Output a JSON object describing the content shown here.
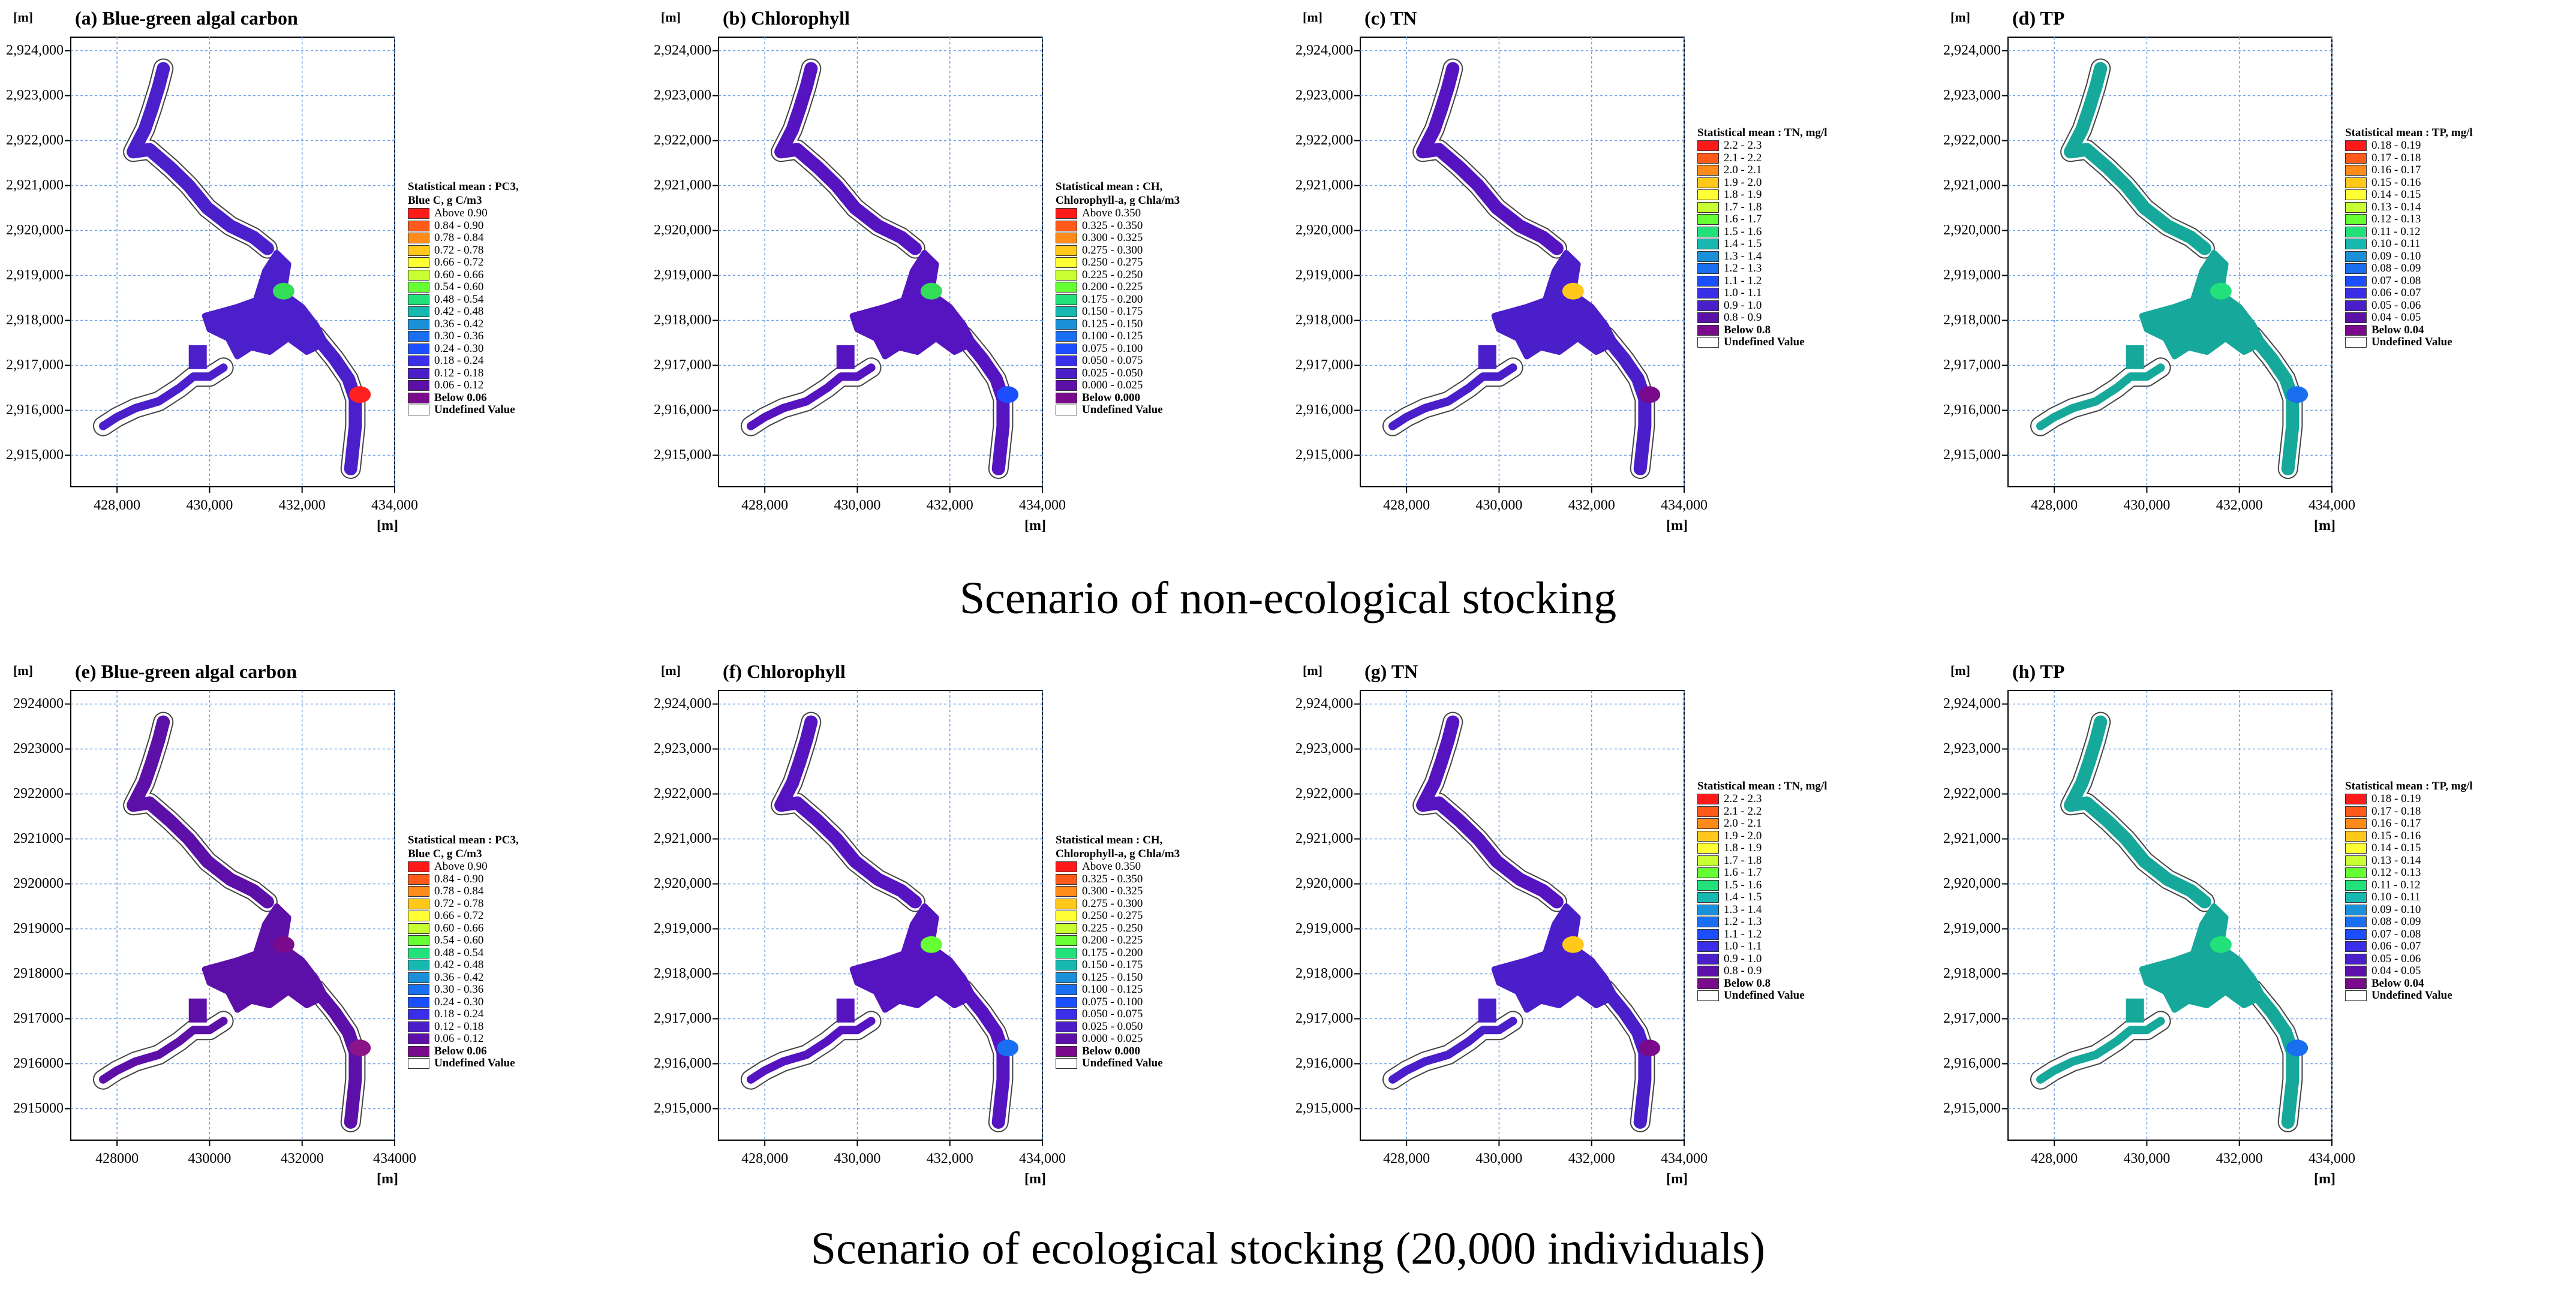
{
  "scenarios": [
    {
      "caption": "Scenario of non-ecological stocking",
      "panels": [
        {
          "title": "(a) Blue-green algal carbon",
          "unit_label": "[m]",
          "y_ticks": [
            "2,924,000",
            "2,923,000",
            "2,922,000",
            "2,921,000",
            "2,920,000",
            "2,919,000",
            "2,918,000",
            "2,917,000",
            "2,916,000",
            "2,915,000"
          ],
          "x_ticks": [
            "428,000",
            "430,000",
            "432,000",
            "434,000"
          ],
          "legend": {
            "title_lines": [
              "Statistical mean : PC3,",
              "Blue C, g C/m3"
            ],
            "entries": [
              "Above 0.90",
              "0.84 - 0.90",
              "0.78 - 0.84",
              "0.72 - 0.78",
              "0.66 - 0.72",
              "0.60 - 0.66",
              "0.54 - 0.60",
              "0.48 - 0.54",
              "0.42 - 0.48",
              "0.36 - 0.42",
              "0.30 - 0.36",
              "0.24 - 0.30",
              "0.18 - 0.24",
              "0.12 - 0.18",
              "0.06 - 0.12",
              "Below 0.06",
              "Undefined Value"
            ],
            "colors": [
              "#ff1a1a",
              "#ff5a1a",
              "#ff8c1a",
              "#ffc81a",
              "#ffff33",
              "#c8ff33",
              "#66ff33",
              "#22e07a",
              "#16b8b0",
              "#1a90d8",
              "#1a6ef0",
              "#1a4eff",
              "#3a2ee8",
              "#4a1ec8",
              "#5c10a8",
              "#7a0a8c",
              "#ffffff"
            ]
          },
          "fill": {
            "base": "#4b1fc9",
            "upper": "#4b1fc9",
            "spots": [
              {
                "label": "east bay",
                "color": "#33dd55"
              },
              {
                "label": "south-east tip",
                "color": "#ff2020"
              }
            ]
          }
        },
        {
          "title": "(b) Chlorophyll",
          "unit_label": "[m]",
          "y_ticks": [
            "2,924,000",
            "2,923,000",
            "2,922,000",
            "2,921,000",
            "2,920,000",
            "2,919,000",
            "2,918,000",
            "2,917,000",
            "2,916,000",
            "2,915,000"
          ],
          "x_ticks": [
            "428,000",
            "430,000",
            "432,000",
            "434,000"
          ],
          "legend": {
            "title_lines": [
              "Statistical mean : CH,",
              "Chlorophyll-a, g Chla/m3"
            ],
            "entries": [
              "Above 0.350",
              "0.325 - 0.350",
              "0.300 - 0.325",
              "0.275 - 0.300",
              "0.250 - 0.275",
              "0.225 - 0.250",
              "0.200 - 0.225",
              "0.175 - 0.200",
              "0.150 - 0.175",
              "0.125 - 0.150",
              "0.100 - 0.125",
              "0.075 - 0.100",
              "0.050 - 0.075",
              "0.025 - 0.050",
              "0.000 - 0.025",
              "Below 0.000",
              "Undefined Value"
            ],
            "colors": [
              "#ff1a1a",
              "#ff5a1a",
              "#ff8c1a",
              "#ffc81a",
              "#ffff33",
              "#c8ff33",
              "#66ff33",
              "#22e07a",
              "#16b8b0",
              "#1a90d8",
              "#1a6ef0",
              "#1a4eff",
              "#3a2ee8",
              "#4a1ec8",
              "#5c10a8",
              "#7a0a8c",
              "#ffffff"
            ]
          },
          "fill": {
            "base": "#5514c0",
            "upper": "#5514c0",
            "spots": [
              {
                "label": "east bay",
                "color": "#33dd55"
              },
              {
                "label": "south-east tip",
                "color": "#1a4eff"
              }
            ]
          }
        },
        {
          "title": "(c) TN",
          "unit_label": "[m]",
          "y_ticks": [
            "2,924,000",
            "2,923,000",
            "2,922,000",
            "2,921,000",
            "2,920,000",
            "2,919,000",
            "2,918,000",
            "2,917,000",
            "2,916,000",
            "2,915,000"
          ],
          "x_ticks": [
            "428,000",
            "430,000",
            "432,000",
            "434,000"
          ],
          "legend": {
            "title_lines": [
              "Statistical mean : TN, mg/l"
            ],
            "entries": [
              "2.2 - 2.3",
              "2.1 - 2.2",
              "2.0 - 2.1",
              "1.9 - 2.0",
              "1.8 - 1.9",
              "1.7 - 1.8",
              "1.6 - 1.7",
              "1.5 - 1.6",
              "1.4 - 1.5",
              "1.3 - 1.4",
              "1.2 - 1.3",
              "1.1 - 1.2",
              "1.0 - 1.1",
              "0.9 - 1.0",
              "0.8 - 0.9",
              "Below 0.8",
              "Undefined Value"
            ],
            "colors": [
              "#ff1a1a",
              "#ff5a1a",
              "#ff8c1a",
              "#ffc81a",
              "#ffff33",
              "#c8ff33",
              "#66ff33",
              "#22e07a",
              "#16b8b0",
              "#1a90d8",
              "#1a6ef0",
              "#1a4eff",
              "#3a2ee8",
              "#4a1ec8",
              "#5c10a8",
              "#7a0a8c",
              "#ffffff"
            ]
          },
          "fill": {
            "base": "#4a1ec8",
            "upper": "#5514c0",
            "spots": [
              {
                "label": "east bay",
                "color": "#ffc81a"
              },
              {
                "label": "south-east tip",
                "color": "#7a0a8c"
              }
            ]
          }
        },
        {
          "title": "(d) TP",
          "unit_label": "[m]",
          "y_ticks": [
            "2,924,000",
            "2,923,000",
            "2,922,000",
            "2,921,000",
            "2,920,000",
            "2,919,000",
            "2,918,000",
            "2,917,000",
            "2,916,000",
            "2,915,000"
          ],
          "x_ticks": [
            "428,000",
            "430,000",
            "432,000",
            "434,000"
          ],
          "legend": {
            "title_lines": [
              "Statistical mean : TP, mg/l"
            ],
            "entries": [
              "0.18 - 0.19",
              "0.17 - 0.18",
              "0.16 - 0.17",
              "0.15 - 0.16",
              "0.14 - 0.15",
              "0.13 - 0.14",
              "0.12 - 0.13",
              "0.11 - 0.12",
              "0.10 - 0.11",
              "0.09 - 0.10",
              "0.08 - 0.09",
              "0.07 - 0.08",
              "0.06 - 0.07",
              "0.05 - 0.06",
              "0.04 - 0.05",
              "Below 0.04",
              "Undefined Value"
            ],
            "colors": [
              "#ff1a1a",
              "#ff5a1a",
              "#ff8c1a",
              "#ffc81a",
              "#ffff33",
              "#c8ff33",
              "#66ff33",
              "#22e07a",
              "#16b8b0",
              "#1a90d8",
              "#1a6ef0",
              "#1a4eff",
              "#3a2ee8",
              "#4a1ec8",
              "#5c10a8",
              "#7a0a8c",
              "#ffffff"
            ]
          },
          "fill": {
            "base": "#16a89a",
            "upper": "#16a89a",
            "spots": [
              {
                "label": "east bay",
                "color": "#22e07a"
              },
              {
                "label": "south-east tip",
                "color": "#1a6ef0"
              }
            ]
          }
        }
      ]
    },
    {
      "caption": "Scenario of ecological stocking (20,000 individuals)",
      "panels": [
        {
          "title": "(e) Blue-green algal carbon",
          "unit_label": "[m]",
          "y_ticks": [
            "2924000",
            "2923000",
            "2922000",
            "2921000",
            "2920000",
            "2919000",
            "2918000",
            "2917000",
            "2916000",
            "2915000"
          ],
          "x_ticks": [
            "428000",
            "430000",
            "432000",
            "434000"
          ],
          "legend": {
            "title_lines": [
              "Statistical mean : PC3,",
              "Blue C, g C/m3"
            ],
            "entries": [
              "Above 0.90",
              "0.84 - 0.90",
              "0.78 - 0.84",
              "0.72 - 0.78",
              "0.66 - 0.72",
              "0.60 - 0.66",
              "0.54 - 0.60",
              "0.48 - 0.54",
              "0.42 - 0.48",
              "0.36 - 0.42",
              "0.30 - 0.36",
              "0.24 - 0.30",
              "0.18 - 0.24",
              "0.12 - 0.18",
              "0.06 - 0.12",
              "Below 0.06",
              "Undefined Value"
            ],
            "colors": [
              "#ff1a1a",
              "#ff5a1a",
              "#ff8c1a",
              "#ffc81a",
              "#ffff33",
              "#c8ff33",
              "#66ff33",
              "#22e07a",
              "#16b8b0",
              "#1a90d8",
              "#1a6ef0",
              "#1a4eff",
              "#3a2ee8",
              "#4a1ec8",
              "#5c10a8",
              "#7a0a8c",
              "#ffffff"
            ]
          },
          "fill": {
            "base": "#5c10a8",
            "upper": "#5c10a8",
            "spots": [
              {
                "label": "east bay",
                "color": "#7a0a8c"
              },
              {
                "label": "south-east tip",
                "color": "#8a1488"
              }
            ]
          }
        },
        {
          "title": "(f) Chlorophyll",
          "unit_label": "[m]",
          "y_ticks": [
            "2,924,000",
            "2,923,000",
            "2,922,000",
            "2,921,000",
            "2,920,000",
            "2,919,000",
            "2,918,000",
            "2,917,000",
            "2,916,000",
            "2,915,000"
          ],
          "x_ticks": [
            "428,000",
            "430,000",
            "432,000",
            "434,000"
          ],
          "legend": {
            "title_lines": [
              "Statistical mean : CH,",
              "Chlorophyll-a, g Chla/m3"
            ],
            "entries": [
              "Above 0.350",
              "0.325 - 0.350",
              "0.300 - 0.325",
              "0.275 - 0.300",
              "0.250 - 0.275",
              "0.225 - 0.250",
              "0.200 - 0.225",
              "0.175 - 0.200",
              "0.150 - 0.175",
              "0.125 - 0.150",
              "0.100 - 0.125",
              "0.075 - 0.100",
              "0.050 - 0.075",
              "0.025 - 0.050",
              "0.000 - 0.025",
              "Below 0.000",
              "Undefined Value"
            ],
            "colors": [
              "#ff1a1a",
              "#ff5a1a",
              "#ff8c1a",
              "#ffc81a",
              "#ffff33",
              "#c8ff33",
              "#66ff33",
              "#22e07a",
              "#16b8b0",
              "#1a90d8",
              "#1a6ef0",
              "#1a4eff",
              "#3a2ee8",
              "#4a1ec8",
              "#5c10a8",
              "#7a0a8c",
              "#ffffff"
            ]
          },
          "fill": {
            "base": "#5514c0",
            "upper": "#5514c0",
            "spots": [
              {
                "label": "east bay",
                "color": "#66ff33"
              },
              {
                "label": "south-east tip",
                "color": "#1a6ef0"
              }
            ]
          }
        },
        {
          "title": "(g) TN",
          "unit_label": "[m]",
          "y_ticks": [
            "2,924,000",
            "2,923,000",
            "2,922,000",
            "2,921,000",
            "2,920,000",
            "2,919,000",
            "2,918,000",
            "2,917,000",
            "2,916,000",
            "2,915,000"
          ],
          "x_ticks": [
            "428,000",
            "430,000",
            "432,000",
            "434,000"
          ],
          "legend": {
            "title_lines": [
              "Statistical mean : TN, mg/l"
            ],
            "entries": [
              "2.2 - 2.3",
              "2.1 - 2.2",
              "2.0 - 2.1",
              "1.9 - 2.0",
              "1.8 - 1.9",
              "1.7 - 1.8",
              "1.6 - 1.7",
              "1.5 - 1.6",
              "1.4 - 1.5",
              "1.3 - 1.4",
              "1.2 - 1.3",
              "1.1 - 1.2",
              "1.0 - 1.1",
              "0.9 - 1.0",
              "0.8 - 0.9",
              "Below 0.8",
              "Undefined Value"
            ],
            "colors": [
              "#ff1a1a",
              "#ff5a1a",
              "#ff8c1a",
              "#ffc81a",
              "#ffff33",
              "#c8ff33",
              "#66ff33",
              "#22e07a",
              "#16b8b0",
              "#1a90d8",
              "#1a6ef0",
              "#1a4eff",
              "#3a2ee8",
              "#4a1ec8",
              "#5c10a8",
              "#7a0a8c",
              "#ffffff"
            ]
          },
          "fill": {
            "base": "#4a1ec8",
            "upper": "#5514c0",
            "spots": [
              {
                "label": "east bay",
                "color": "#ffc81a"
              },
              {
                "label": "south-east tip",
                "color": "#7a0a8c"
              }
            ]
          }
        },
        {
          "title": "(h) TP",
          "unit_label": "[m]",
          "y_ticks": [
            "2,924,000",
            "2,923,000",
            "2,922,000",
            "2,921,000",
            "2,920,000",
            "2,919,000",
            "2,918,000",
            "2,917,000",
            "2,916,000",
            "2,915,000"
          ],
          "x_ticks": [
            "428,000",
            "430,000",
            "432,000",
            "434,000"
          ],
          "legend": {
            "title_lines": [
              "Statistical mean : TP, mg/l"
            ],
            "entries": [
              "0.18 - 0.19",
              "0.17 - 0.18",
              "0.16 - 0.17",
              "0.15 - 0.16",
              "0.14 - 0.15",
              "0.13 - 0.14",
              "0.12 - 0.13",
              "0.11 - 0.12",
              "0.10 - 0.11",
              "0.09 - 0.10",
              "0.08 - 0.09",
              "0.07 - 0.08",
              "0.06 - 0.07",
              "0.05 - 0.06",
              "0.04 - 0.05",
              "Below 0.04",
              "Undefined Value"
            ],
            "colors": [
              "#ff1a1a",
              "#ff5a1a",
              "#ff8c1a",
              "#ffc81a",
              "#ffff33",
              "#c8ff33",
              "#66ff33",
              "#22e07a",
              "#16b8b0",
              "#1a90d8",
              "#1a6ef0",
              "#1a4eff",
              "#3a2ee8",
              "#4a1ec8",
              "#5c10a8",
              "#7a0a8c",
              "#ffffff"
            ]
          },
          "fill": {
            "base": "#16a89a",
            "upper": "#16a89a",
            "spots": [
              {
                "label": "east bay",
                "color": "#22e07a"
              },
              {
                "label": "south-east tip",
                "color": "#1a6ef0"
              }
            ]
          }
        }
      ]
    }
  ]
}
